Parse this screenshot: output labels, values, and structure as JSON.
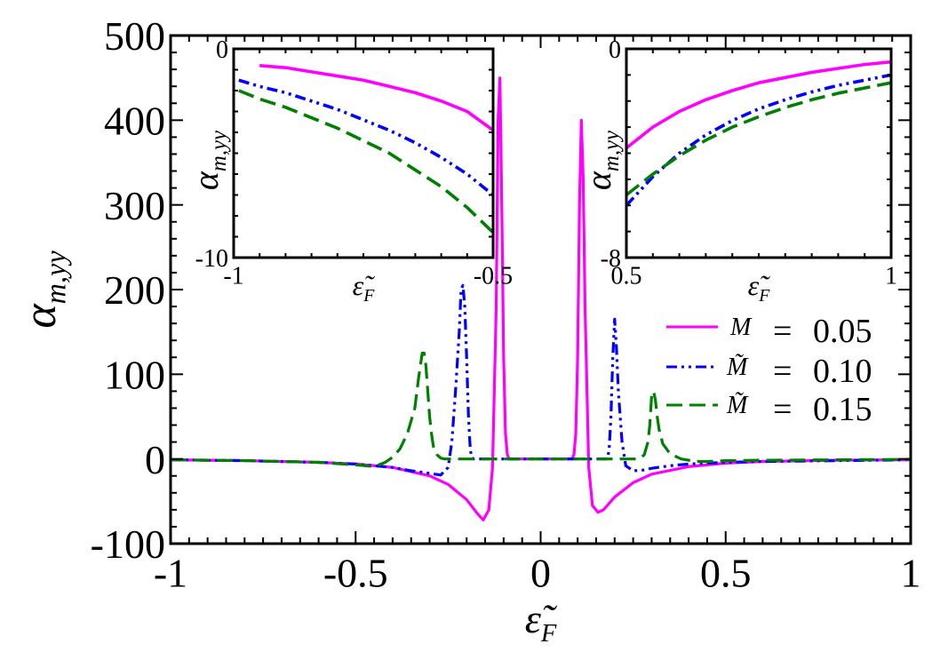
{
  "chart_data": [
    {
      "id": "main",
      "type": "line",
      "xlabel": "ε̃",
      "xlabel_sub": "F",
      "ylabel": "α",
      "ylabel_sub": "m,yy",
      "xlim": [
        -1,
        1
      ],
      "ylim": [
        -100,
        500
      ],
      "xticks": [
        -1,
        -0.5,
        0,
        0.5,
        1
      ],
      "xtick_labels": [
        "-1",
        "-0.5",
        "0",
        "0.5",
        "1"
      ],
      "yticks": [
        -100,
        0,
        100,
        200,
        300,
        400,
        500
      ],
      "ytick_labels": [
        "-100",
        "0",
        "100",
        "200",
        "300",
        "400",
        "500"
      ],
      "series": [
        {
          "name": "M = 0.05",
          "label_symbol": "M",
          "label_value": "0.05",
          "color": "#ff00ff",
          "dash": "solid",
          "x": [
            -1.0,
            -0.8,
            -0.6,
            -0.5,
            -0.4,
            -0.3,
            -0.25,
            -0.2,
            -0.17,
            -0.155,
            -0.14,
            -0.13,
            -0.12,
            -0.115,
            -0.11,
            -0.105,
            -0.1,
            -0.095,
            -0.09,
            -0.085,
            -0.08,
            0.08,
            0.085,
            0.09,
            0.095,
            0.1,
            0.105,
            0.11,
            0.115,
            0.12,
            0.13,
            0.14,
            0.155,
            0.17,
            0.2,
            0.25,
            0.3,
            0.4,
            0.5,
            0.6,
            0.8,
            1.0
          ],
          "y": [
            -1,
            -2,
            -4,
            -6,
            -10,
            -20,
            -30,
            -48,
            -65,
            -72,
            -60,
            -10,
            180,
            400,
            450,
            300,
            120,
            30,
            5,
            0,
            0,
            0,
            0,
            5,
            30,
            120,
            300,
            400,
            330,
            180,
            -10,
            -55,
            -63,
            -60,
            -45,
            -28,
            -18,
            -9,
            -5,
            -3,
            -1.5,
            -1
          ]
        },
        {
          "name": "M̃ = 0.10",
          "label_symbol": "M̃",
          "label_value": "0.10",
          "color": "#0000ff",
          "dash": "12,5,3,5,3,5",
          "x": [
            -1.0,
            -0.8,
            -0.6,
            -0.5,
            -0.4,
            -0.35,
            -0.3,
            -0.27,
            -0.25,
            -0.24,
            -0.23,
            -0.22,
            -0.215,
            -0.21,
            -0.205,
            -0.2,
            -0.195,
            -0.19,
            -0.185,
            -0.18,
            -0.17,
            0.17,
            0.18,
            0.185,
            0.19,
            0.195,
            0.2,
            0.205,
            0.21,
            0.22,
            0.23,
            0.25,
            0.28,
            0.3,
            0.35,
            0.4,
            0.5,
            0.6,
            0.8,
            1.0
          ],
          "y": [
            -1,
            -2,
            -4,
            -6,
            -10,
            -14,
            -17,
            -19,
            -10,
            20,
            80,
            150,
            200,
            205,
            180,
            120,
            50,
            10,
            1,
            0,
            0,
            0,
            0,
            10,
            50,
            120,
            165,
            130,
            80,
            20,
            -8,
            -14,
            -13,
            -11,
            -8,
            -6,
            -4,
            -3,
            -2,
            -1
          ]
        },
        {
          "name": "M̃ = 0.15",
          "label_symbol": "M̃",
          "label_value": "0.15",
          "color": "#008000",
          "dash": "18,8",
          "x": [
            -1.0,
            -0.8,
            -0.6,
            -0.5,
            -0.45,
            -0.42,
            -0.4,
            -0.38,
            -0.36,
            -0.34,
            -0.33,
            -0.32,
            -0.315,
            -0.31,
            -0.305,
            -0.3,
            -0.295,
            -0.29,
            -0.28,
            -0.27,
            -0.26,
            0.26,
            0.27,
            0.28,
            0.29,
            0.295,
            0.3,
            0.305,
            0.31,
            0.315,
            0.32,
            0.33,
            0.35,
            0.38,
            0.42,
            0.45,
            0.5,
            0.6,
            0.8,
            1.0
          ],
          "y": [
            -1,
            -2,
            -4,
            -7,
            -9,
            -4,
            2,
            12,
            30,
            60,
            95,
            125,
            125,
            110,
            80,
            50,
            30,
            15,
            5,
            1,
            0,
            0,
            1,
            5,
            20,
            40,
            75,
            80,
            70,
            50,
            35,
            18,
            6,
            0,
            -3,
            -3,
            -2,
            -1.5,
            -1,
            -0.5
          ]
        }
      ],
      "legend_position": "right"
    },
    {
      "id": "inset-left",
      "type": "line",
      "xlabel": "ε̃",
      "xlabel_sub": "F",
      "ylabel": "α",
      "ylabel_sub": "m,yy",
      "xlim": [
        -1,
        -0.5
      ],
      "ylim": [
        -10,
        0
      ],
      "xticks": [
        -1,
        -0.5
      ],
      "xtick_labels": [
        "-1",
        "-0.5"
      ],
      "yticks": [
        -10,
        0
      ],
      "ytick_labels": [
        "-10",
        "0"
      ],
      "series": [
        {
          "name": "M = 0.05",
          "color": "#ff00ff",
          "dash": "solid",
          "x": [
            -0.95,
            -0.9,
            -0.85,
            -0.8,
            -0.75,
            -0.7,
            -0.65,
            -0.6,
            -0.55,
            -0.5
          ],
          "y": [
            -0.8,
            -0.9,
            -1.1,
            -1.3,
            -1.5,
            -1.8,
            -2.1,
            -2.5,
            -3.0,
            -3.9
          ]
        },
        {
          "name": "M̃ = 0.10",
          "color": "#0000ff",
          "dash": "12,5,3,5,3,5",
          "x": [
            -0.99,
            -0.95,
            -0.9,
            -0.85,
            -0.8,
            -0.75,
            -0.7,
            -0.65,
            -0.6,
            -0.55,
            -0.5
          ],
          "y": [
            -1.5,
            -1.8,
            -2.1,
            -2.5,
            -2.9,
            -3.4,
            -3.9,
            -4.5,
            -5.2,
            -6.0,
            -7.0
          ]
        },
        {
          "name": "M̃ = 0.15",
          "color": "#008000",
          "dash": "18,8",
          "x": [
            -0.99,
            -0.95,
            -0.9,
            -0.85,
            -0.8,
            -0.75,
            -0.7,
            -0.65,
            -0.6,
            -0.55,
            -0.5
          ],
          "y": [
            -2.0,
            -2.4,
            -2.8,
            -3.3,
            -3.8,
            -4.4,
            -5.0,
            -5.8,
            -6.6,
            -7.6,
            -8.8
          ]
        }
      ]
    },
    {
      "id": "inset-right",
      "type": "line",
      "xlabel": "ε̃",
      "xlabel_sub": "F",
      "ylabel": "α",
      "ylabel_sub": "m,yy",
      "xlim": [
        0.5,
        1
      ],
      "ylim": [
        -8,
        0
      ],
      "xticks": [
        0.5,
        1
      ],
      "xtick_labels": [
        "0.5",
        "1"
      ],
      "yticks": [
        -8,
        0
      ],
      "ytick_labels": [
        "-8",
        "0"
      ],
      "series": [
        {
          "name": "M = 0.05",
          "color": "#ff00ff",
          "dash": "solid",
          "x": [
            0.5,
            0.55,
            0.6,
            0.65,
            0.7,
            0.75,
            0.8,
            0.85,
            0.9,
            0.95,
            1.0
          ],
          "y": [
            -3.8,
            -3.0,
            -2.4,
            -1.95,
            -1.6,
            -1.3,
            -1.1,
            -0.9,
            -0.75,
            -0.6,
            -0.5
          ]
        },
        {
          "name": "M̃ = 0.10",
          "color": "#0000ff",
          "dash": "12,5,3,5,3,5",
          "x": [
            0.5,
            0.55,
            0.6,
            0.65,
            0.7,
            0.75,
            0.8,
            0.85,
            0.9,
            0.95,
            1.0
          ],
          "y": [
            -6.0,
            -4.9,
            -4.0,
            -3.3,
            -2.75,
            -2.3,
            -1.95,
            -1.65,
            -1.4,
            -1.2,
            -1.0
          ]
        },
        {
          "name": "M̃ = 0.15",
          "color": "#008000",
          "dash": "18,8",
          "x": [
            0.5,
            0.55,
            0.6,
            0.65,
            0.7,
            0.75,
            0.8,
            0.85,
            0.9,
            0.95,
            1.0
          ],
          "y": [
            -5.6,
            -4.8,
            -4.1,
            -3.5,
            -3.0,
            -2.6,
            -2.25,
            -1.95,
            -1.7,
            -1.5,
            -1.3
          ]
        }
      ]
    }
  ],
  "legend": {
    "items": [
      {
        "symbol": "M",
        "equals": "=",
        "value": "0.05"
      },
      {
        "symbol": "M̃",
        "equals": "=",
        "value": "0.10"
      },
      {
        "symbol": "M̃",
        "equals": "=",
        "value": "0.15"
      }
    ]
  }
}
